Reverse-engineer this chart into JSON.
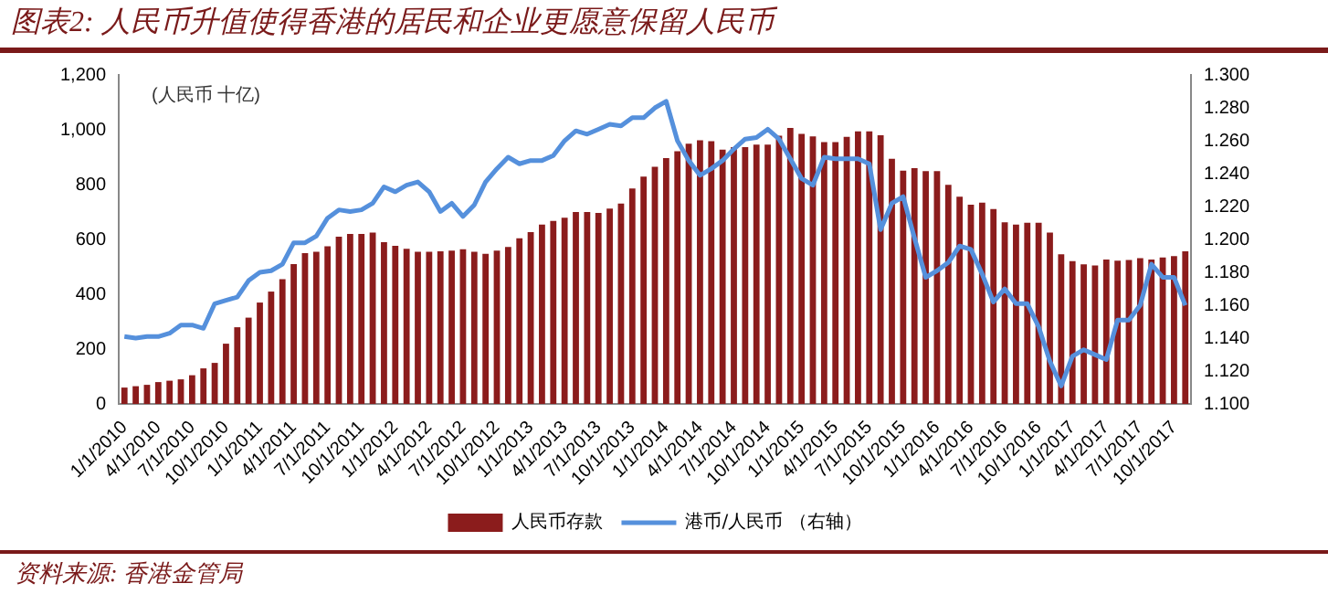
{
  "chart_data": {
    "type": "bar",
    "title": "图表2: 人民币升值使得香港的居民和企业更愿意保留人民币",
    "ylabel": "(人民币 十亿)",
    "categories": [
      "1/1/2010",
      null,
      null,
      "4/1/2010",
      null,
      null,
      "7/1/2010",
      null,
      null,
      "10/1/2010",
      null,
      null,
      "1/1/2011",
      null,
      null,
      "4/1/2011",
      null,
      null,
      "7/1/2011",
      null,
      null,
      "10/1/2011",
      null,
      null,
      "1/1/2012",
      null,
      null,
      "4/1/2012",
      null,
      null,
      "7/1/2012",
      null,
      null,
      "10/1/2012",
      null,
      null,
      "1/1/2013",
      null,
      null,
      "4/1/2013",
      null,
      null,
      "7/1/2013",
      null,
      null,
      "10/1/2013",
      null,
      null,
      "1/1/2014",
      null,
      null,
      "4/1/2014",
      null,
      null,
      "7/1/2014",
      null,
      null,
      "10/1/2014",
      null,
      null,
      "1/1/2015",
      null,
      null,
      "4/1/2015",
      null,
      null,
      "7/1/2015",
      null,
      null,
      "10/1/2015",
      null,
      null,
      "1/1/2016",
      null,
      null,
      "4/1/2016",
      null,
      null,
      "7/1/2016",
      null,
      null,
      "10/1/2016",
      null,
      null,
      "1/1/2017",
      null,
      null,
      "4/1/2017",
      null,
      null,
      "7/1/2017",
      null,
      null,
      "10/1/2017",
      null
    ],
    "series": [
      {
        "name": "人民币存款",
        "color": "#8b1c1c",
        "values": [
          60,
          65,
          70,
          80,
          85,
          90,
          105,
          130,
          150,
          220,
          280,
          315,
          370,
          410,
          455,
          510,
          550,
          555,
          575,
          610,
          620,
          620,
          625,
          590,
          577,
          566,
          555,
          555,
          557,
          559,
          564,
          555,
          548,
          559,
          573,
          604,
          627,
          654,
          668,
          679,
          700,
          700,
          697,
          713,
          731,
          786,
          829,
          865,
          897,
          922,
          949,
          962,
          958,
          928,
          937,
          937,
          946,
          946,
          978,
          1007,
          985,
          976,
          955,
          955,
          974,
          994,
          994,
          980,
          894,
          851,
          860,
          849,
          849,
          799,
          756,
          727,
          734,
          711,
          663,
          654,
          661,
          661,
          625,
          546,
          521,
          509,
          505,
          527,
          523,
          525,
          532,
          527,
          534,
          539,
          557
        ]
      },
      {
        "name": "港币/人民币 （右轴）",
        "type": "line",
        "axis": "y2",
        "color": "#5590dc",
        "values": [
          1.141,
          1.14,
          1.141,
          1.141,
          1.143,
          1.148,
          1.148,
          1.146,
          1.161,
          1.163,
          1.165,
          1.175,
          1.18,
          1.181,
          1.185,
          1.198,
          1.198,
          1.202,
          1.213,
          1.218,
          1.217,
          1.218,
          1.222,
          1.232,
          1.229,
          1.233,
          1.235,
          1.229,
          1.217,
          1.222,
          1.214,
          1.221,
          1.235,
          1.243,
          1.25,
          1.246,
          1.248,
          1.248,
          1.251,
          1.26,
          1.266,
          1.264,
          1.267,
          1.27,
          1.269,
          1.274,
          1.274,
          1.28,
          1.284,
          1.26,
          1.248,
          1.239,
          1.243,
          1.248,
          1.255,
          1.261,
          1.262,
          1.267,
          1.261,
          1.249,
          1.237,
          1.233,
          1.25,
          1.249,
          1.249,
          1.249,
          1.246,
          1.206,
          1.222,
          1.226,
          1.201,
          1.177,
          1.181,
          1.186,
          1.196,
          1.194,
          1.179,
          1.162,
          1.17,
          1.161,
          1.161,
          1.147,
          1.126,
          1.111,
          1.129,
          1.133,
          1.13,
          1.127,
          1.151,
          1.151,
          1.16,
          1.185,
          1.177,
          1.177,
          1.16
        ]
      }
    ],
    "ylim": [
      0,
      1200
    ],
    "yticks": [
      0,
      200,
      400,
      600,
      800,
      {
        "value": 1000,
        "label": "1,000"
      },
      {
        "value": 1200,
        "label": "1,200"
      }
    ],
    "y2lim": [
      1.1,
      1.3
    ],
    "y2ticks": [
      {
        "value": 1.1,
        "label": "1.100"
      },
      {
        "value": 1.12,
        "label": "1.120"
      },
      {
        "value": 1.14,
        "label": "1.140"
      },
      {
        "value": 1.16,
        "label": "1.160"
      },
      {
        "value": 1.18,
        "label": "1.180"
      },
      {
        "value": 1.2,
        "label": "1.200"
      },
      {
        "value": 1.22,
        "label": "1.220"
      },
      {
        "value": 1.24,
        "label": "1.240"
      },
      {
        "value": 1.26,
        "label": "1.260"
      },
      {
        "value": 1.28,
        "label": "1.280"
      },
      {
        "value": 1.3,
        "label": "1.300"
      }
    ],
    "grid": false,
    "legend": "bottom",
    "marker": "none",
    "annotations": [
      "资料来源: 香港金管局"
    ]
  }
}
